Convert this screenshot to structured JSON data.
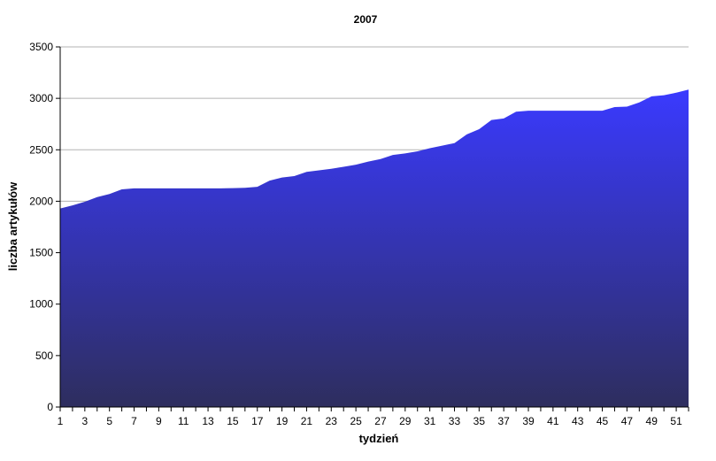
{
  "chart_data": {
    "type": "area",
    "title": "2007",
    "xlabel": "tydzień",
    "ylabel": "liczba artykułów",
    "x": [
      1,
      2,
      3,
      4,
      5,
      6,
      7,
      8,
      9,
      10,
      11,
      12,
      13,
      14,
      15,
      16,
      17,
      18,
      19,
      20,
      21,
      22,
      23,
      24,
      25,
      26,
      27,
      28,
      29,
      30,
      31,
      32,
      33,
      34,
      35,
      36,
      37,
      38,
      39,
      40,
      41,
      42,
      43,
      44,
      45,
      46,
      47,
      48,
      49,
      50,
      51,
      52
    ],
    "x_tick_labels": [
      "1",
      "3",
      "5",
      "7",
      "9",
      "11",
      "13",
      "15",
      "17",
      "19",
      "21",
      "23",
      "25",
      "27",
      "29",
      "31",
      "33",
      "35",
      "37",
      "39",
      "41",
      "43",
      "45",
      "47",
      "49",
      "51"
    ],
    "values": [
      1930,
      1960,
      1995,
      2040,
      2070,
      2115,
      2125,
      2125,
      2125,
      2125,
      2125,
      2125,
      2125,
      2125,
      2127,
      2130,
      2140,
      2200,
      2230,
      2245,
      2285,
      2300,
      2315,
      2335,
      2355,
      2385,
      2410,
      2450,
      2465,
      2485,
      2515,
      2540,
      2565,
      2650,
      2700,
      2790,
      2805,
      2870,
      2880,
      2880,
      2880,
      2880,
      2880,
      2880,
      2880,
      2915,
      2920,
      2960,
      3020,
      3030,
      3055,
      3085
    ],
    "y_ticks": [
      0,
      500,
      1000,
      1500,
      2000,
      2500,
      3000,
      3500
    ],
    "ylim": [
      0,
      3500
    ],
    "grid": true,
    "legend": "none",
    "colors": {
      "fill_top": "#3a3aff",
      "fill_bottom": "#2e2e5e",
      "grid": "#b3b3b3",
      "axis": "#000000"
    }
  }
}
